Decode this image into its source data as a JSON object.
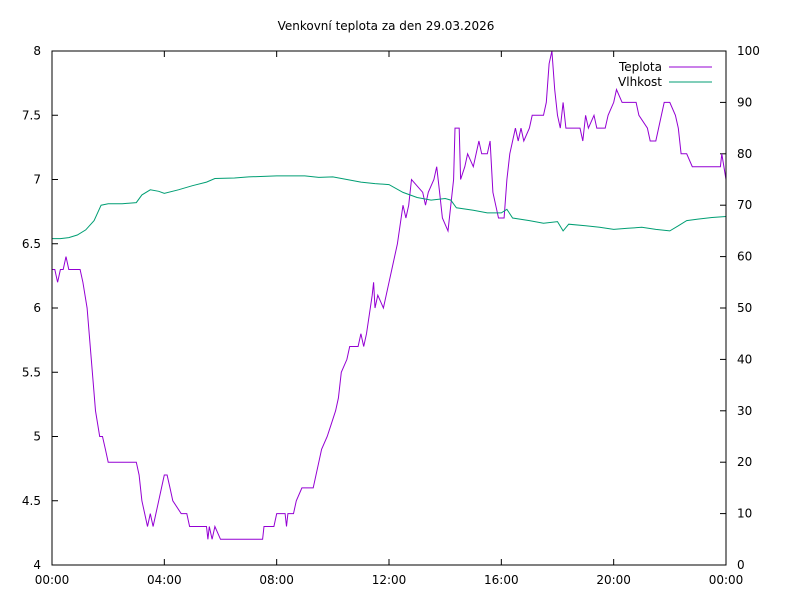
{
  "chart_data": {
    "type": "line",
    "title": "Venkovní teplota za den 29.03.2026",
    "x_axis": {
      "ticks": [
        "00:00",
        "04:00",
        "08:00",
        "12:00",
        "16:00",
        "20:00",
        "00:00"
      ],
      "tick_hours": [
        0,
        4,
        8,
        12,
        16,
        20,
        24
      ],
      "range_hours": [
        0,
        24
      ]
    },
    "y_left": {
      "ticks": [
        "4",
        "4.5",
        "5",
        "5.5",
        "6",
        "6.5",
        "7",
        "7.5",
        "8"
      ],
      "range": [
        4,
        8
      ]
    },
    "y_right": {
      "ticks": [
        "0",
        "10",
        "20",
        "30",
        "40",
        "50",
        "60",
        "70",
        "80",
        "90",
        "100"
      ],
      "range": [
        0,
        100
      ]
    },
    "grid": false,
    "legend_position": "top-right",
    "series": [
      {
        "name": "Teplota",
        "axis": "left",
        "color": "#9400d3",
        "points": [
          [
            0.0,
            6.3
          ],
          [
            0.1,
            6.3
          ],
          [
            0.2,
            6.2
          ],
          [
            0.3,
            6.3
          ],
          [
            0.4,
            6.3
          ],
          [
            0.5,
            6.4
          ],
          [
            0.6,
            6.3
          ],
          [
            1.0,
            6.3
          ],
          [
            1.1,
            6.2
          ],
          [
            1.25,
            6.0
          ],
          [
            1.4,
            5.6
          ],
          [
            1.55,
            5.2
          ],
          [
            1.7,
            5.0
          ],
          [
            1.8,
            5.0
          ],
          [
            1.9,
            4.9
          ],
          [
            2.0,
            4.8
          ],
          [
            3.0,
            4.8
          ],
          [
            3.1,
            4.7
          ],
          [
            3.2,
            4.5
          ],
          [
            3.3,
            4.4
          ],
          [
            3.4,
            4.3
          ],
          [
            3.5,
            4.4
          ],
          [
            3.6,
            4.3
          ],
          [
            3.7,
            4.4
          ],
          [
            3.8,
            4.5
          ],
          [
            3.9,
            4.6
          ],
          [
            4.0,
            4.7
          ],
          [
            4.1,
            4.7
          ],
          [
            4.2,
            4.6
          ],
          [
            4.3,
            4.5
          ],
          [
            4.6,
            4.4
          ],
          [
            4.8,
            4.4
          ],
          [
            4.9,
            4.3
          ],
          [
            5.5,
            4.3
          ],
          [
            5.55,
            4.2
          ],
          [
            5.6,
            4.3
          ],
          [
            5.7,
            4.2
          ],
          [
            5.8,
            4.3
          ],
          [
            6.0,
            4.2
          ],
          [
            7.5,
            4.2
          ],
          [
            7.55,
            4.3
          ],
          [
            7.9,
            4.3
          ],
          [
            8.0,
            4.4
          ],
          [
            8.3,
            4.4
          ],
          [
            8.35,
            4.3
          ],
          [
            8.4,
            4.4
          ],
          [
            8.6,
            4.4
          ],
          [
            8.7,
            4.5
          ],
          [
            8.9,
            4.6
          ],
          [
            9.3,
            4.6
          ],
          [
            9.5,
            4.8
          ],
          [
            9.6,
            4.9
          ],
          [
            9.8,
            5.0
          ],
          [
            9.95,
            5.1
          ],
          [
            10.1,
            5.2
          ],
          [
            10.2,
            5.3
          ],
          [
            10.3,
            5.5
          ],
          [
            10.5,
            5.6
          ],
          [
            10.6,
            5.7
          ],
          [
            10.9,
            5.7
          ],
          [
            11.0,
            5.8
          ],
          [
            11.1,
            5.7
          ],
          [
            11.2,
            5.8
          ],
          [
            11.4,
            6.1
          ],
          [
            11.45,
            6.2
          ],
          [
            11.5,
            6.0
          ],
          [
            11.6,
            6.1
          ],
          [
            11.8,
            6.0
          ],
          [
            12.0,
            6.2
          ],
          [
            12.1,
            6.3
          ],
          [
            12.3,
            6.5
          ],
          [
            12.5,
            6.8
          ],
          [
            12.6,
            6.7
          ],
          [
            12.7,
            6.8
          ],
          [
            12.8,
            7.0
          ],
          [
            13.2,
            6.9
          ],
          [
            13.3,
            6.8
          ],
          [
            13.4,
            6.9
          ],
          [
            13.6,
            7.0
          ],
          [
            13.7,
            7.1
          ],
          [
            13.8,
            6.9
          ],
          [
            13.9,
            6.7
          ],
          [
            14.1,
            6.6
          ],
          [
            14.2,
            6.8
          ],
          [
            14.3,
            7.0
          ],
          [
            14.35,
            7.4
          ],
          [
            14.5,
            7.4
          ],
          [
            14.55,
            7.0
          ],
          [
            14.7,
            7.1
          ],
          [
            14.8,
            7.2
          ],
          [
            15.0,
            7.1
          ],
          [
            15.2,
            7.3
          ],
          [
            15.3,
            7.2
          ],
          [
            15.5,
            7.2
          ],
          [
            15.6,
            7.3
          ],
          [
            15.7,
            6.9
          ],
          [
            15.8,
            6.8
          ],
          [
            15.9,
            6.7
          ],
          [
            16.1,
            6.7
          ],
          [
            16.2,
            7.0
          ],
          [
            16.3,
            7.2
          ],
          [
            16.4,
            7.3
          ],
          [
            16.5,
            7.4
          ],
          [
            16.6,
            7.3
          ],
          [
            16.7,
            7.4
          ],
          [
            16.8,
            7.3
          ],
          [
            17.0,
            7.4
          ],
          [
            17.1,
            7.5
          ],
          [
            17.5,
            7.5
          ],
          [
            17.6,
            7.6
          ],
          [
            17.7,
            7.9
          ],
          [
            17.8,
            8.0
          ],
          [
            17.9,
            7.7
          ],
          [
            18.0,
            7.5
          ],
          [
            18.1,
            7.4
          ],
          [
            18.2,
            7.6
          ],
          [
            18.3,
            7.4
          ],
          [
            18.8,
            7.4
          ],
          [
            18.9,
            7.3
          ],
          [
            19.0,
            7.5
          ],
          [
            19.1,
            7.4
          ],
          [
            19.3,
            7.5
          ],
          [
            19.4,
            7.4
          ],
          [
            19.7,
            7.4
          ],
          [
            19.8,
            7.5
          ],
          [
            20.0,
            7.6
          ],
          [
            20.1,
            7.7
          ],
          [
            20.3,
            7.6
          ],
          [
            20.8,
            7.6
          ],
          [
            20.9,
            7.5
          ],
          [
            21.2,
            7.4
          ],
          [
            21.3,
            7.3
          ],
          [
            21.5,
            7.3
          ],
          [
            21.6,
            7.4
          ],
          [
            21.8,
            7.6
          ],
          [
            22.0,
            7.6
          ],
          [
            22.2,
            7.5
          ],
          [
            22.3,
            7.4
          ],
          [
            22.4,
            7.2
          ],
          [
            22.6,
            7.2
          ],
          [
            22.8,
            7.1
          ],
          [
            23.8,
            7.1
          ],
          [
            23.85,
            7.2
          ],
          [
            24.0,
            7.0
          ]
        ]
      },
      {
        "name": "Vlhkost",
        "axis": "right",
        "color": "#009e73",
        "points": [
          [
            0.0,
            63.5
          ],
          [
            0.3,
            63.5
          ],
          [
            0.6,
            63.7
          ],
          [
            0.9,
            64.2
          ],
          [
            1.2,
            65.2
          ],
          [
            1.5,
            67.0
          ],
          [
            1.75,
            70.0
          ],
          [
            2.0,
            70.3
          ],
          [
            2.5,
            70.3
          ],
          [
            3.0,
            70.5
          ],
          [
            3.2,
            72.0
          ],
          [
            3.5,
            73.0
          ],
          [
            3.8,
            72.7
          ],
          [
            4.0,
            72.3
          ],
          [
            4.5,
            73.0
          ],
          [
            5.0,
            73.8
          ],
          [
            5.5,
            74.5
          ],
          [
            5.8,
            75.2
          ],
          [
            6.5,
            75.3
          ],
          [
            7.0,
            75.5
          ],
          [
            8.0,
            75.7
          ],
          [
            9.0,
            75.7
          ],
          [
            9.5,
            75.4
          ],
          [
            10.0,
            75.5
          ],
          [
            10.5,
            75.0
          ],
          [
            11.0,
            74.5
          ],
          [
            11.5,
            74.2
          ],
          [
            12.0,
            74.0
          ],
          [
            12.5,
            72.5
          ],
          [
            13.0,
            71.5
          ],
          [
            13.5,
            71.0
          ],
          [
            14.0,
            71.3
          ],
          [
            14.2,
            71.0
          ],
          [
            14.4,
            69.5
          ],
          [
            15.0,
            69.0
          ],
          [
            15.5,
            68.5
          ],
          [
            16.0,
            68.5
          ],
          [
            16.2,
            69.2
          ],
          [
            16.4,
            67.5
          ],
          [
            17.0,
            67.0
          ],
          [
            17.5,
            66.5
          ],
          [
            18.0,
            66.8
          ],
          [
            18.2,
            65.0
          ],
          [
            18.4,
            66.3
          ],
          [
            19.0,
            66.0
          ],
          [
            19.5,
            65.7
          ],
          [
            20.0,
            65.3
          ],
          [
            20.5,
            65.5
          ],
          [
            21.0,
            65.7
          ],
          [
            21.5,
            65.3
          ],
          [
            22.0,
            65.0
          ],
          [
            22.3,
            66.0
          ],
          [
            22.6,
            67.0
          ],
          [
            23.0,
            67.3
          ],
          [
            23.5,
            67.6
          ],
          [
            24.0,
            67.8
          ]
        ]
      }
    ]
  }
}
